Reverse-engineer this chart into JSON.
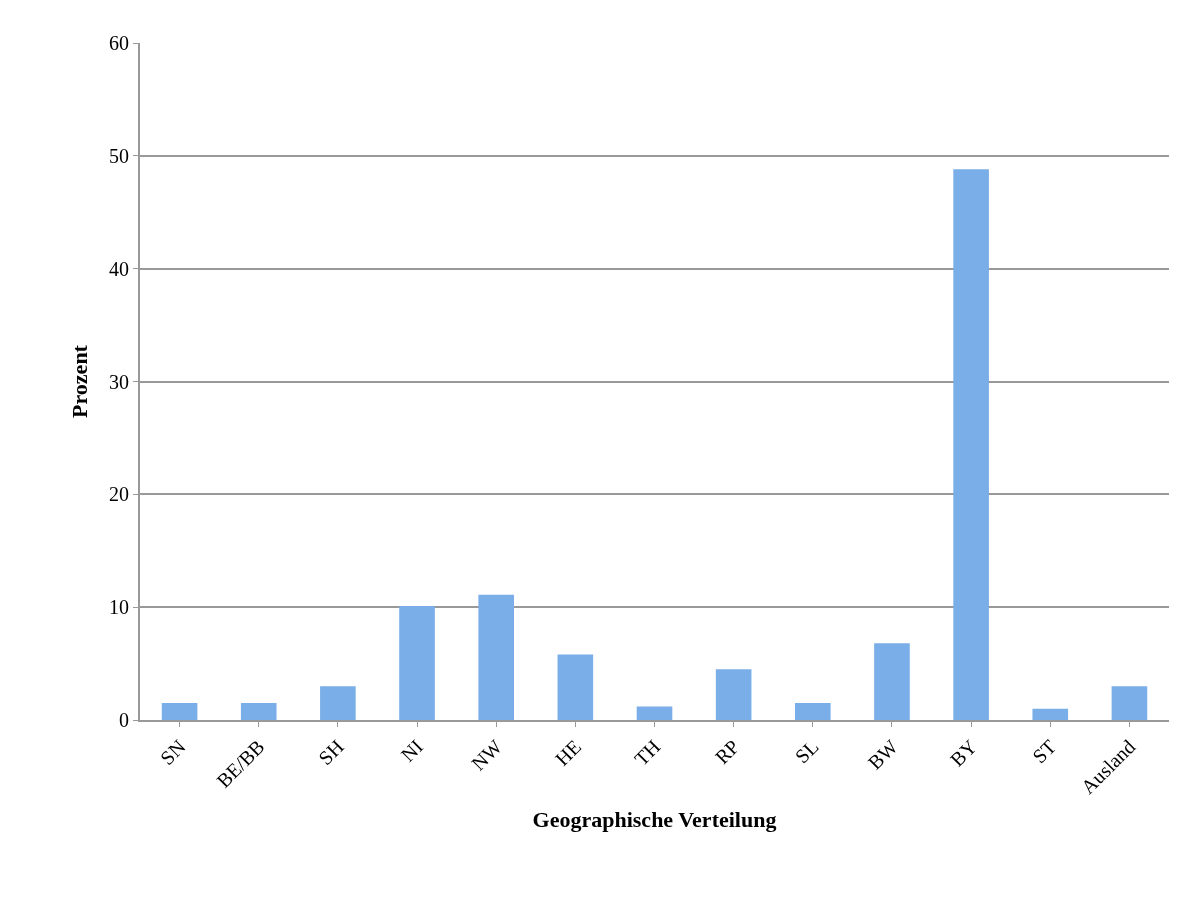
{
  "chart_data": {
    "type": "bar",
    "xlabel": "Geographische Verteilung",
    "ylabel": "Prozent",
    "categories": [
      "SN",
      "BE/BB",
      "SH",
      "NI",
      "NW",
      "HE",
      "TH",
      "RP",
      "SL",
      "BW",
      "BY",
      "ST",
      "Ausland"
    ],
    "values": [
      1.5,
      1.5,
      3.0,
      10.1,
      11.1,
      5.8,
      1.2,
      4.5,
      1.5,
      6.8,
      48.8,
      1.0,
      3.0
    ],
    "color": "#7aaee8",
    "ylim": [
      0,
      60
    ],
    "yticks": [
      0,
      10,
      20,
      30,
      40,
      50,
      60
    ],
    "grid": "y",
    "legend": false
  }
}
